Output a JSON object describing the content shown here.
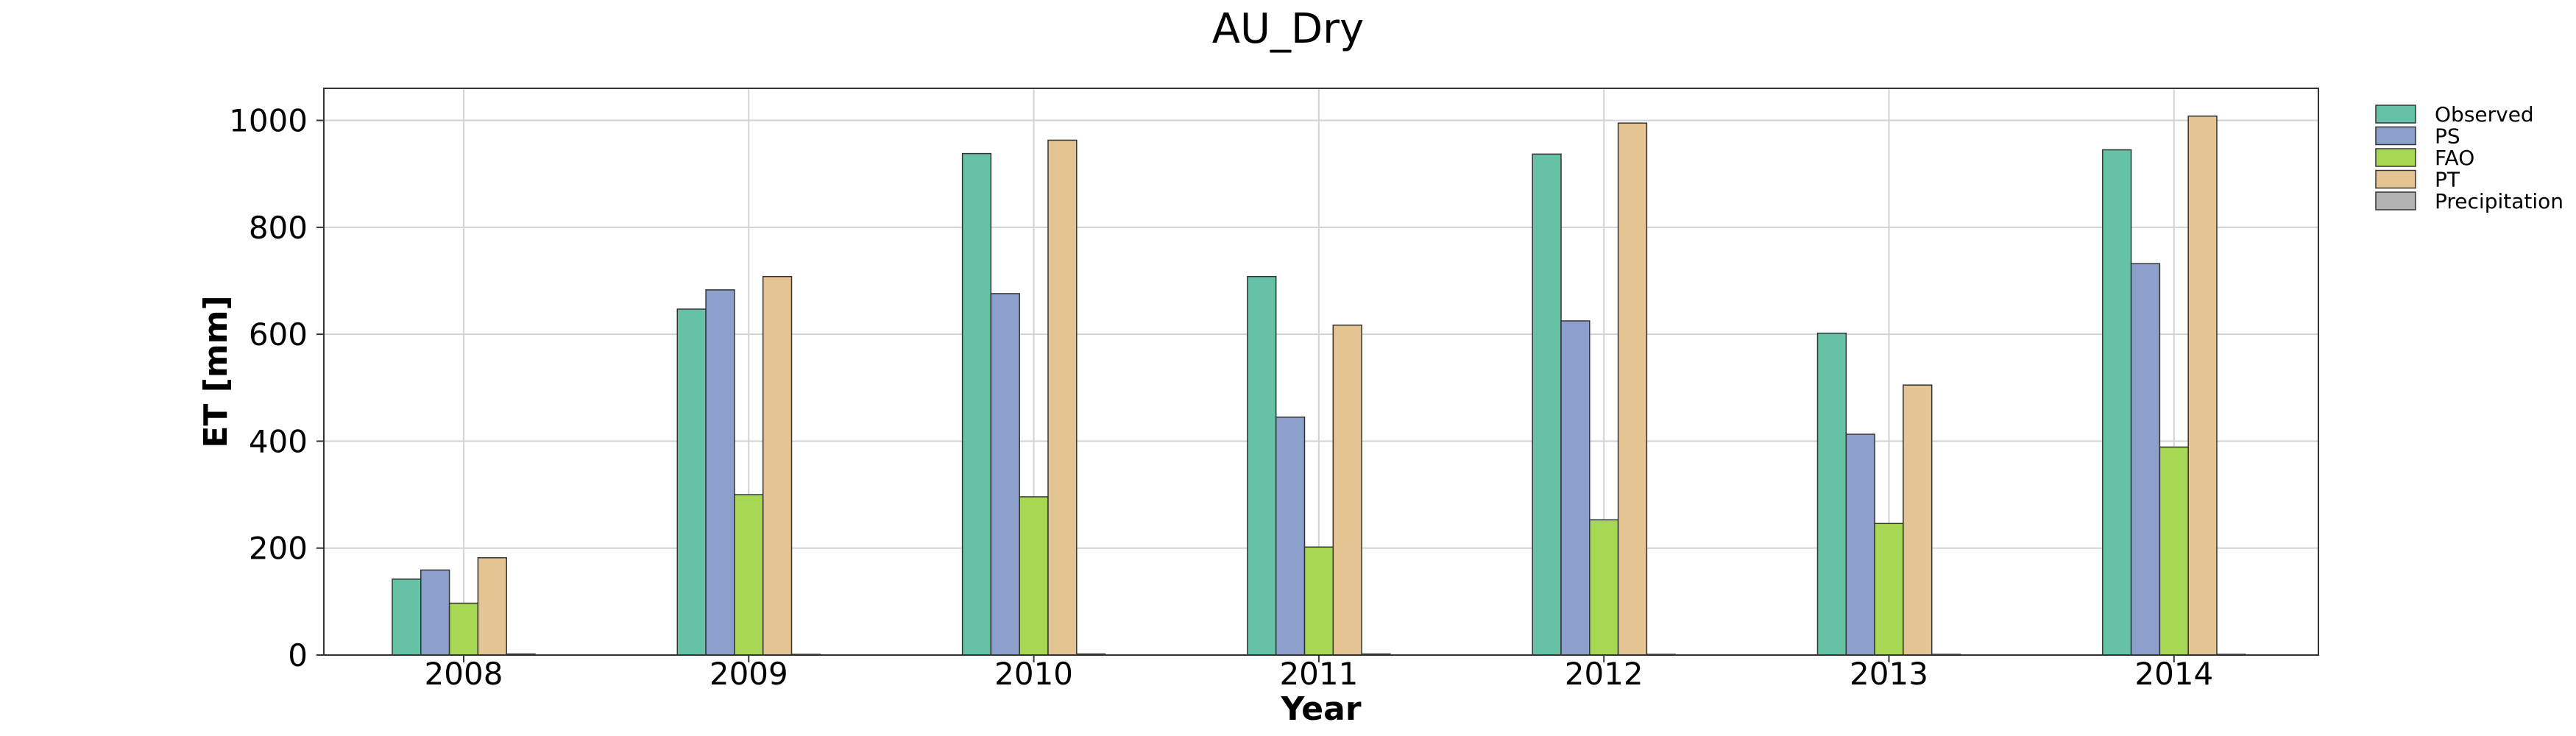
{
  "chart_data": {
    "type": "bar",
    "title": "AU_Dry",
    "xlabel": "Year",
    "ylabel": "ET [mm]",
    "categories": [
      "2008",
      "2009",
      "2010",
      "2011",
      "2012",
      "2013",
      "2014"
    ],
    "ylim": [
      0,
      1060
    ],
    "yticks": [
      0,
      200,
      400,
      600,
      800,
      1000
    ],
    "grid": true,
    "legend_position": "upper right, outside plot",
    "series": [
      {
        "name": "Observed",
        "color": "#66c2a5",
        "values": [
          142,
          647,
          938,
          708,
          937,
          602,
          945
        ]
      },
      {
        "name": "PS",
        "color": "#8da0cb",
        "values": [
          159,
          683,
          676,
          445,
          625,
          413,
          732
        ]
      },
      {
        "name": "FAO",
        "color": "#a6d854",
        "values": [
          97,
          300,
          296,
          202,
          253,
          246,
          389
        ]
      },
      {
        "name": "PT",
        "color": "#e5c494",
        "values": [
          182,
          708,
          963,
          617,
          995,
          505,
          1008
        ]
      },
      {
        "name": "Precipitation",
        "color": "#b3b3b3",
        "values": [
          2,
          1,
          2,
          2,
          1,
          1,
          1
        ]
      }
    ]
  }
}
